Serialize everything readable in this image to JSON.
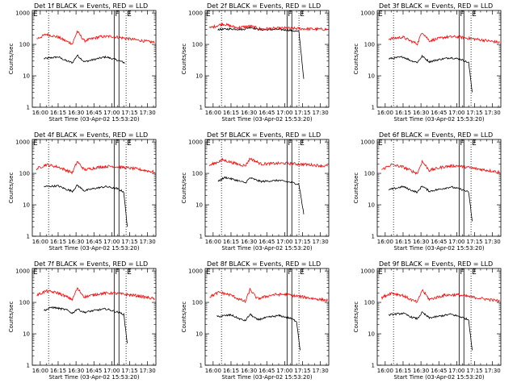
{
  "figure": {
    "xlabel": "Start Time (03-Apr-02 15:53:20)",
    "ylabel": "Counts/sec",
    "x_ticks": [
      "16:00",
      "16:15",
      "16:30",
      "16:45",
      "17:00",
      "17:15",
      "17:30"
    ],
    "y_ticks": [
      "1",
      "10",
      "100",
      "1000"
    ],
    "marker_labels": [
      "F",
      "E"
    ]
  },
  "chart_data": [
    {
      "type": "line",
      "title": "Det 1f BLACK = Events, RED = LLD",
      "xlabel": "Start Time (03-Apr-02 15:53:20)",
      "ylabel": "Counts/sec",
      "yscale": "log",
      "ylim": [
        1,
        1200
      ],
      "xlim": [
        "15:53:20",
        "17:37"
      ],
      "series": [
        {
          "name": "Events",
          "color": "#000000",
          "x": [
            "16:03",
            "16:15",
            "16:22",
            "16:27",
            "16:31",
            "16:37",
            "16:45",
            "16:55",
            "17:04",
            "17:11"
          ],
          "y": [
            35,
            40,
            30,
            26,
            45,
            28,
            33,
            40,
            32,
            26
          ]
        },
        {
          "name": "LLD",
          "color": "#ff0000",
          "x": [
            "15:57",
            "16:05",
            "16:15",
            "16:22",
            "16:27",
            "16:31",
            "16:37",
            "16:50",
            "17:00",
            "17:20",
            "17:36"
          ],
          "y": [
            150,
            210,
            170,
            125,
            105,
            260,
            130,
            175,
            180,
            140,
            115
          ]
        }
      ],
      "vlines": {
        "dotted": [
          "16:07",
          "17:12"
        ],
        "solid": [
          "17:02",
          "17:06"
        ]
      }
    },
    {
      "type": "line",
      "title": "Det 2f BLACK = Events, RED = LLD",
      "xlabel": "Start Time (03-Apr-02 15:53:20)",
      "ylabel": "Counts/sec",
      "yscale": "log",
      "ylim": [
        1,
        1200
      ],
      "xlim": [
        "15:53:20",
        "17:37"
      ],
      "series": [
        {
          "name": "Events",
          "color": "#000000",
          "x": [
            "16:04",
            "16:15",
            "16:25",
            "16:31",
            "16:40",
            "16:55",
            "17:05",
            "17:12",
            "17:16"
          ],
          "y": [
            300,
            310,
            300,
            350,
            290,
            300,
            280,
            250,
            8
          ]
        },
        {
          "name": "LLD",
          "color": "#ff0000",
          "x": [
            "15:57",
            "16:08",
            "16:20",
            "16:31",
            "16:40",
            "17:00",
            "17:20",
            "17:36"
          ],
          "y": [
            330,
            450,
            340,
            380,
            310,
            330,
            310,
            300
          ]
        }
      ],
      "vlines": {
        "dotted": [
          "16:07",
          "17:12"
        ],
        "solid": [
          "17:02",
          "17:06"
        ]
      }
    },
    {
      "type": "line",
      "title": "Det 3f BLACK = Events, RED = LLD",
      "xlabel": "Start Time (03-Apr-02 15:53:20)",
      "ylabel": "Counts/sec",
      "yscale": "log",
      "ylim": [
        1,
        1200
      ],
      "xlim": [
        "15:53:20",
        "17:37"
      ],
      "series": [
        {
          "name": "Events",
          "color": "#000000",
          "x": [
            "16:03",
            "16:15",
            "16:22",
            "16:27",
            "16:31",
            "16:37",
            "16:45",
            "16:55",
            "17:04",
            "17:10",
            "17:13"
          ],
          "y": [
            35,
            40,
            30,
            27,
            42,
            28,
            33,
            38,
            33,
            26,
            3
          ]
        },
        {
          "name": "LLD",
          "color": "#ff0000",
          "x": [
            "16:03",
            "16:15",
            "16:22",
            "16:27",
            "16:31",
            "16:37",
            "16:50",
            "17:00",
            "17:20",
            "17:36"
          ],
          "y": [
            150,
            170,
            125,
            105,
            250,
            130,
            170,
            175,
            140,
            115
          ]
        }
      ],
      "vlines": {
        "dotted": [
          "16:07",
          "17:12"
        ],
        "solid": [
          "17:02",
          "17:06"
        ]
      }
    },
    {
      "type": "line",
      "title": "Det 4f BLACK = Events, RED = LLD",
      "xlabel": "Start Time (03-Apr-02 15:53:20)",
      "ylabel": "Counts/sec",
      "yscale": "log",
      "ylim": [
        1,
        1200
      ],
      "xlim": [
        "15:53:20",
        "17:37"
      ],
      "series": [
        {
          "name": "Events",
          "color": "#000000",
          "x": [
            "16:03",
            "16:15",
            "16:22",
            "16:27",
            "16:31",
            "16:37",
            "16:45",
            "16:55",
            "17:04",
            "17:10",
            "17:13"
          ],
          "y": [
            38,
            40,
            31,
            27,
            42,
            28,
            33,
            38,
            33,
            26,
            2
          ]
        },
        {
          "name": "LLD",
          "color": "#ff0000",
          "x": [
            "15:57",
            "16:05",
            "16:15",
            "16:22",
            "16:27",
            "16:31",
            "16:37",
            "16:50",
            "17:00",
            "17:20",
            "17:36"
          ],
          "y": [
            140,
            190,
            160,
            125,
            105,
            240,
            130,
            160,
            170,
            140,
            110
          ]
        }
      ],
      "vlines": {
        "dotted": [
          "16:07",
          "17:12"
        ],
        "solid": [
          "17:02",
          "17:06"
        ]
      }
    },
    {
      "type": "line",
      "title": "Det 5f BLACK = Events, RED = LLD",
      "xlabel": "Start Time (03-Apr-02 15:53:20)",
      "ylabel": "Counts/sec",
      "yscale": "log",
      "ylim": [
        1,
        1200
      ],
      "xlim": [
        "15:53:20",
        "17:37"
      ],
      "series": [
        {
          "name": "Events",
          "color": "#000000",
          "x": [
            "16:04",
            "16:10",
            "16:20",
            "16:27",
            "16:31",
            "16:40",
            "16:55",
            "17:05",
            "17:12",
            "17:16"
          ],
          "y": [
            55,
            75,
            60,
            50,
            72,
            55,
            60,
            52,
            45,
            5
          ]
        },
        {
          "name": "LLD",
          "color": "#ff0000",
          "x": [
            "15:57",
            "16:08",
            "16:20",
            "16:27",
            "16:31",
            "16:40",
            "17:00",
            "17:20",
            "17:36"
          ],
          "y": [
            180,
            270,
            200,
            175,
            300,
            200,
            210,
            190,
            170
          ]
        }
      ],
      "vlines": {
        "dotted": [
          "16:07",
          "17:12"
        ],
        "solid": [
          "17:02",
          "17:06"
        ]
      }
    },
    {
      "type": "line",
      "title": "Det 6f BLACK = Events, RED = LLD",
      "xlabel": "Start Time (03-Apr-02 15:53:20)",
      "ylabel": "Counts/sec",
      "yscale": "log",
      "ylim": [
        1,
        1200
      ],
      "xlim": [
        "15:53:20",
        "17:37"
      ],
      "series": [
        {
          "name": "Events",
          "color": "#000000",
          "x": [
            "16:03",
            "16:15",
            "16:22",
            "16:27",
            "16:31",
            "16:37",
            "16:45",
            "16:55",
            "17:04",
            "17:10",
            "17:13"
          ],
          "y": [
            30,
            38,
            29,
            25,
            40,
            27,
            31,
            37,
            31,
            25,
            3
          ]
        },
        {
          "name": "LLD",
          "color": "#ff0000",
          "x": [
            "15:57",
            "16:05",
            "16:15",
            "16:22",
            "16:27",
            "16:31",
            "16:37",
            "16:50",
            "17:00",
            "17:20",
            "17:36"
          ],
          "y": [
            130,
            190,
            160,
            120,
            100,
            240,
            125,
            165,
            175,
            135,
            110
          ]
        }
      ],
      "vlines": {
        "dotted": [
          "16:07",
          "17:12"
        ],
        "solid": [
          "17:02",
          "17:06"
        ]
      }
    },
    {
      "type": "line",
      "title": "Det 7f BLACK = Events, RED = LLD",
      "xlabel": "Start Time (03-Apr-02 15:53:20)",
      "ylabel": "Counts/sec",
      "yscale": "log",
      "ylim": [
        1,
        1200
      ],
      "xlim": [
        "15:53:20",
        "17:37"
      ],
      "series": [
        {
          "name": "Events",
          "color": "#000000",
          "x": [
            "16:03",
            "16:10",
            "16:22",
            "16:27",
            "16:31",
            "16:37",
            "16:45",
            "16:55",
            "17:04",
            "17:10",
            "17:13"
          ],
          "y": [
            55,
            70,
            58,
            45,
            62,
            48,
            55,
            62,
            50,
            42,
            5
          ]
        },
        {
          "name": "LLD",
          "color": "#ff0000",
          "x": [
            "15:57",
            "16:05",
            "16:15",
            "16:22",
            "16:27",
            "16:31",
            "16:37",
            "16:50",
            "17:00",
            "17:20",
            "17:36"
          ],
          "y": [
            170,
            230,
            200,
            150,
            125,
            280,
            150,
            190,
            200,
            165,
            130
          ]
        }
      ],
      "vlines": {
        "dotted": [
          "16:07",
          "17:12"
        ],
        "solid": [
          "17:02",
          "17:06"
        ]
      }
    },
    {
      "type": "line",
      "title": "Det 8f BLACK = Events, RED = LLD",
      "xlabel": "Start Time (03-Apr-02 15:53:20)",
      "ylabel": "Counts/sec",
      "yscale": "log",
      "ylim": [
        1,
        1200
      ],
      "xlim": [
        "15:53:20",
        "17:37"
      ],
      "series": [
        {
          "name": "Events",
          "color": "#000000",
          "x": [
            "16:03",
            "16:15",
            "16:22",
            "16:27",
            "16:31",
            "16:37",
            "16:45",
            "16:55",
            "17:04",
            "17:10",
            "17:13"
          ],
          "y": [
            35,
            40,
            30,
            26,
            42,
            28,
            33,
            38,
            32,
            25,
            3
          ]
        },
        {
          "name": "LLD",
          "color": "#ff0000",
          "x": [
            "15:57",
            "16:05",
            "16:15",
            "16:22",
            "16:27",
            "16:31",
            "16:37",
            "16:50",
            "17:00",
            "17:20",
            "17:36"
          ],
          "y": [
            150,
            210,
            170,
            125,
            105,
            260,
            130,
            175,
            180,
            140,
            115
          ]
        }
      ],
      "vlines": {
        "dotted": [
          "16:07",
          "17:12"
        ],
        "solid": [
          "17:02",
          "17:06"
        ]
      }
    },
    {
      "type": "line",
      "title": "Det 9f BLACK = Events, RED = LLD",
      "xlabel": "Start Time (03-Apr-02 15:53:20)",
      "ylabel": "Counts/sec",
      "yscale": "log",
      "ylim": [
        1,
        1200
      ],
      "xlim": [
        "15:53:20",
        "17:37"
      ],
      "series": [
        {
          "name": "Events",
          "color": "#000000",
          "x": [
            "16:03",
            "16:15",
            "16:22",
            "16:27",
            "16:31",
            "16:37",
            "16:45",
            "16:55",
            "17:04",
            "17:10",
            "17:13"
          ],
          "y": [
            40,
            45,
            34,
            30,
            48,
            32,
            36,
            42,
            34,
            28,
            3
          ]
        },
        {
          "name": "LLD",
          "color": "#ff0000",
          "x": [
            "15:57",
            "16:05",
            "16:15",
            "16:22",
            "16:27",
            "16:31",
            "16:37",
            "16:50",
            "17:00",
            "17:20",
            "17:36"
          ],
          "y": [
            140,
            200,
            165,
            120,
            100,
            250,
            125,
            170,
            175,
            135,
            110
          ]
        }
      ],
      "vlines": {
        "dotted": [
          "16:07",
          "17:12"
        ],
        "solid": [
          "17:02",
          "17:06"
        ]
      }
    }
  ]
}
